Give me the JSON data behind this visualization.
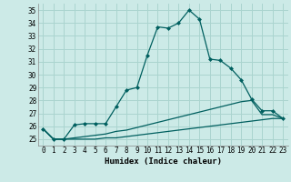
{
  "title": "",
  "xlabel": "Humidex (Indice chaleur)",
  "ylabel": "",
  "background_color": "#cceae7",
  "grid_color": "#aad4cf",
  "line_color": "#005f5f",
  "xlim": [
    -0.5,
    23.5
  ],
  "ylim": [
    24.5,
    35.5
  ],
  "xticks": [
    0,
    1,
    2,
    3,
    4,
    5,
    6,
    7,
    8,
    9,
    10,
    11,
    12,
    13,
    14,
    15,
    16,
    17,
    18,
    19,
    20,
    21,
    22,
    23
  ],
  "yticks": [
    25,
    26,
    27,
    28,
    29,
    30,
    31,
    32,
    33,
    34,
    35
  ],
  "line1_x": [
    0,
    1,
    2,
    3,
    4,
    5,
    6,
    7,
    8,
    9,
    10,
    11,
    12,
    13,
    14,
    15,
    16,
    17,
    18,
    19,
    20,
    21,
    22,
    23
  ],
  "line1_y": [
    25.8,
    25.0,
    25.0,
    26.1,
    26.2,
    26.2,
    26.2,
    27.5,
    28.8,
    29.0,
    31.5,
    33.7,
    33.6,
    34.0,
    35.0,
    34.3,
    31.2,
    31.1,
    30.5,
    29.6,
    28.1,
    27.2,
    27.2,
    26.6
  ],
  "line2_x": [
    0,
    1,
    2,
    3,
    4,
    5,
    6,
    7,
    8,
    9,
    10,
    11,
    12,
    13,
    14,
    15,
    16,
    17,
    18,
    19,
    20,
    21,
    22,
    23
  ],
  "line2_y": [
    25.8,
    25.0,
    25.0,
    25.1,
    25.2,
    25.3,
    25.4,
    25.6,
    25.7,
    25.9,
    26.1,
    26.3,
    26.5,
    26.7,
    26.9,
    27.1,
    27.3,
    27.5,
    27.7,
    27.9,
    28.0,
    26.9,
    26.9,
    26.6
  ],
  "line3_x": [
    0,
    1,
    2,
    3,
    4,
    5,
    6,
    7,
    8,
    9,
    10,
    11,
    12,
    13,
    14,
    15,
    16,
    17,
    18,
    19,
    20,
    21,
    22,
    23
  ],
  "line3_y": [
    25.8,
    25.0,
    25.0,
    25.0,
    25.0,
    25.0,
    25.1,
    25.1,
    25.2,
    25.3,
    25.4,
    25.5,
    25.6,
    25.7,
    25.8,
    25.9,
    26.0,
    26.1,
    26.2,
    26.3,
    26.4,
    26.5,
    26.6,
    26.6
  ],
  "xlabel_fontsize": 6.5,
  "tick_fontsize": 5.5
}
